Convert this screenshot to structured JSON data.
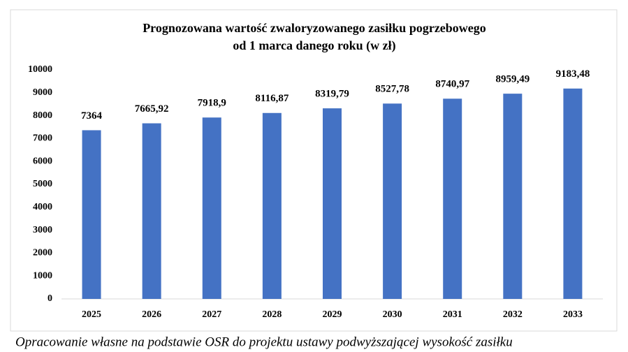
{
  "chart_data": {
    "type": "bar",
    "title": [
      "Prognozowana wartość zwaloryzowanego zasiłku pogrzebowego",
      "od 1 marca danego roku (w zł)"
    ],
    "categories": [
      "2025",
      "2026",
      "2027",
      "2028",
      "2029",
      "2030",
      "2031",
      "2032",
      "2033"
    ],
    "values": [
      7364,
      7665.92,
      7918.9,
      8116.87,
      8319.79,
      8527.78,
      8740.97,
      8959.49,
      9183.48
    ],
    "value_labels": [
      "7364",
      "7665,92",
      "7918,9",
      "8116,87",
      "8319,79",
      "8527,78",
      "8740,97",
      "8959,49",
      "9183,48"
    ],
    "color": "#4472c4",
    "ylim": [
      0,
      10000
    ],
    "yticks": [
      0,
      1000,
      2000,
      3000,
      4000,
      5000,
      6000,
      7000,
      8000,
      9000,
      10000
    ],
    "grid": false
  },
  "footer": "Opracowanie własne na podstawie OSR do projektu ustawy podwyższającej wysokość zasiłku"
}
